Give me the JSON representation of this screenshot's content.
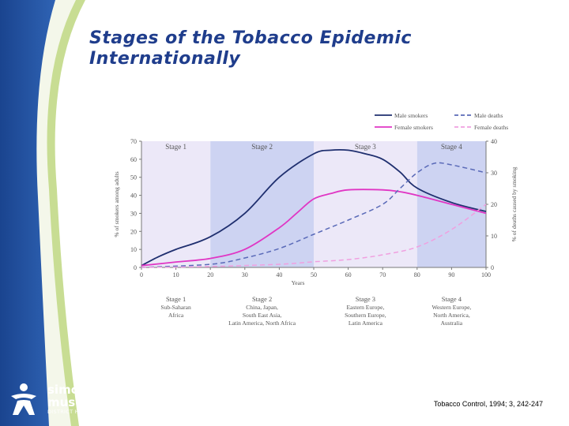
{
  "slide": {
    "title_line1": "Stages of the Tobacco Epidemic",
    "title_line2": "Internationally",
    "citation": "Tobacco Control, 1994; 3, 242-247",
    "logo": {
      "line1": "simcoe",
      "line2": "muskoka",
      "line3": "DISTRICT HEALTH UNIT",
      "icon": "person-figure-icon"
    }
  },
  "colors": {
    "title": "#1f3d8c",
    "sidebar_dark": "#1e4a9a",
    "sidebar_light": "#b9d27a",
    "male_smokers": "#1f2f6f",
    "female_smokers": "#e036c4",
    "male_deaths": "#5a6ab8",
    "female_deaths": "#f0a0e0",
    "stage_light": "#ece8f8",
    "stage_dark": "#cdd3f2"
  },
  "chart_data": {
    "type": "line",
    "xlabel": "Years",
    "ylabel_left": "% of smokers among adults",
    "ylabel_right": "% of deaths caused by smoking",
    "x_ticks": [
      0,
      10,
      20,
      30,
      40,
      50,
      60,
      70,
      80,
      90,
      100
    ],
    "y_left_ticks": [
      0,
      10,
      20,
      30,
      40,
      50,
      60,
      70
    ],
    "y_right_ticks": [
      0,
      10,
      20,
      30,
      40
    ],
    "xlim": [
      0,
      100
    ],
    "ylim_left": [
      0,
      70
    ],
    "ylim_right": [
      0,
      40
    ],
    "stages": [
      {
        "label": "Stage 1",
        "x_start": 0,
        "x_end": 20,
        "desc": [
          "Stage 1",
          "Sub-Saharan",
          "Africa"
        ]
      },
      {
        "label": "Stage 2",
        "x_start": 20,
        "x_end": 50,
        "desc": [
          "Stage 2",
          "China, Japan,",
          "South East Asia,",
          "Latin America, North Africa"
        ]
      },
      {
        "label": "Stage 3",
        "x_start": 50,
        "x_end": 80,
        "desc": [
          "Stage 3",
          "Eastern Europe,",
          "Southern Europe,",
          "Latin America"
        ]
      },
      {
        "label": "Stage 4",
        "x_start": 80,
        "x_end": 100,
        "desc": [
          "Stage 4",
          "Western Europe,",
          "North America,",
          "Australia"
        ]
      }
    ],
    "legend": [
      "Male smokers",
      "Male deaths",
      "Female smokers",
      "Female deaths"
    ],
    "series": [
      {
        "name": "Male smokers",
        "axis": "left",
        "style": "solid",
        "x": [
          0,
          5,
          10,
          20,
          30,
          40,
          50,
          55,
          60,
          65,
          70,
          75,
          80,
          90,
          100
        ],
        "y": [
          1,
          6,
          10,
          17,
          30,
          50,
          63,
          65,
          65,
          63,
          60,
          53,
          44,
          36,
          31
        ]
      },
      {
        "name": "Female smokers",
        "axis": "left",
        "style": "solid",
        "x": [
          0,
          10,
          20,
          30,
          40,
          45,
          50,
          55,
          60,
          70,
          75,
          80,
          90,
          100
        ],
        "y": [
          1,
          3,
          5,
          10,
          22,
          30,
          38,
          41,
          43,
          43,
          42,
          40,
          35,
          30
        ]
      },
      {
        "name": "Male deaths",
        "axis": "right",
        "style": "dashed",
        "x": [
          0,
          20,
          30,
          40,
          50,
          60,
          70,
          75,
          80,
          85,
          90,
          100
        ],
        "y": [
          0,
          1,
          3,
          6,
          10.5,
          15,
          20,
          25,
          30,
          33,
          32.5,
          30
        ]
      },
      {
        "name": "Female deaths",
        "axis": "right",
        "style": "dashed",
        "x": [
          0,
          20,
          40,
          50,
          60,
          70,
          80,
          90,
          100
        ],
        "y": [
          0,
          0.3,
          1,
          1.8,
          2.5,
          4,
          6.5,
          12,
          20
        ]
      }
    ]
  }
}
